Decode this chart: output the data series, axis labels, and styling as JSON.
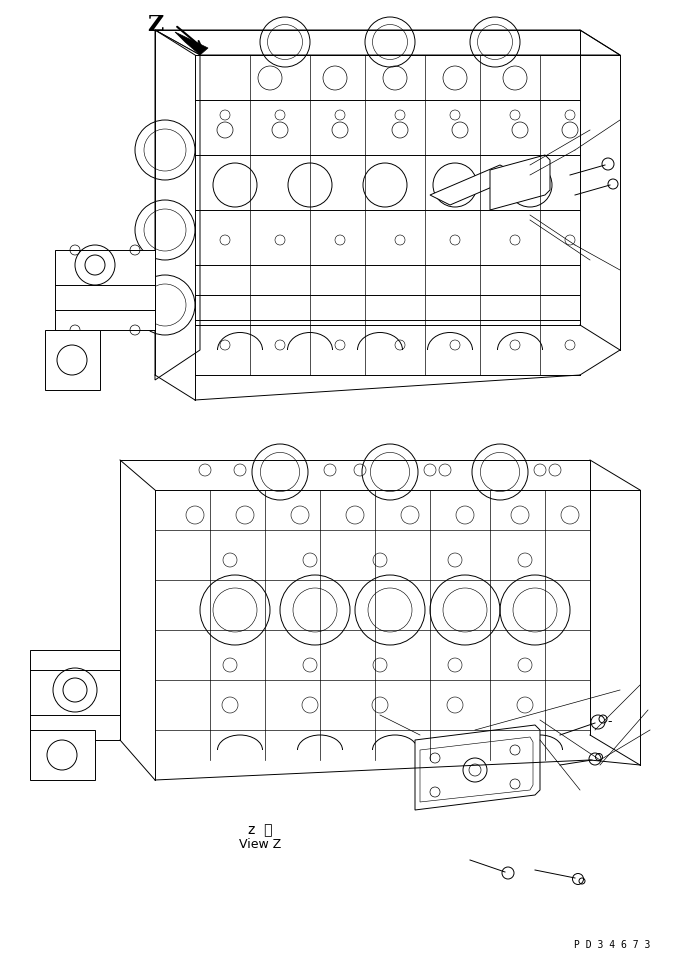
{
  "bg_color": "#ffffff",
  "line_color": "#000000",
  "figsize": [
    7.0,
    9.6
  ],
  "dpi": 100,
  "label_z_view_jp": "z  視",
  "label_z_view_en": "View Z",
  "label_z": "Z",
  "label_pd": "P D 3 4 6 7 3",
  "label_dash": "-"
}
